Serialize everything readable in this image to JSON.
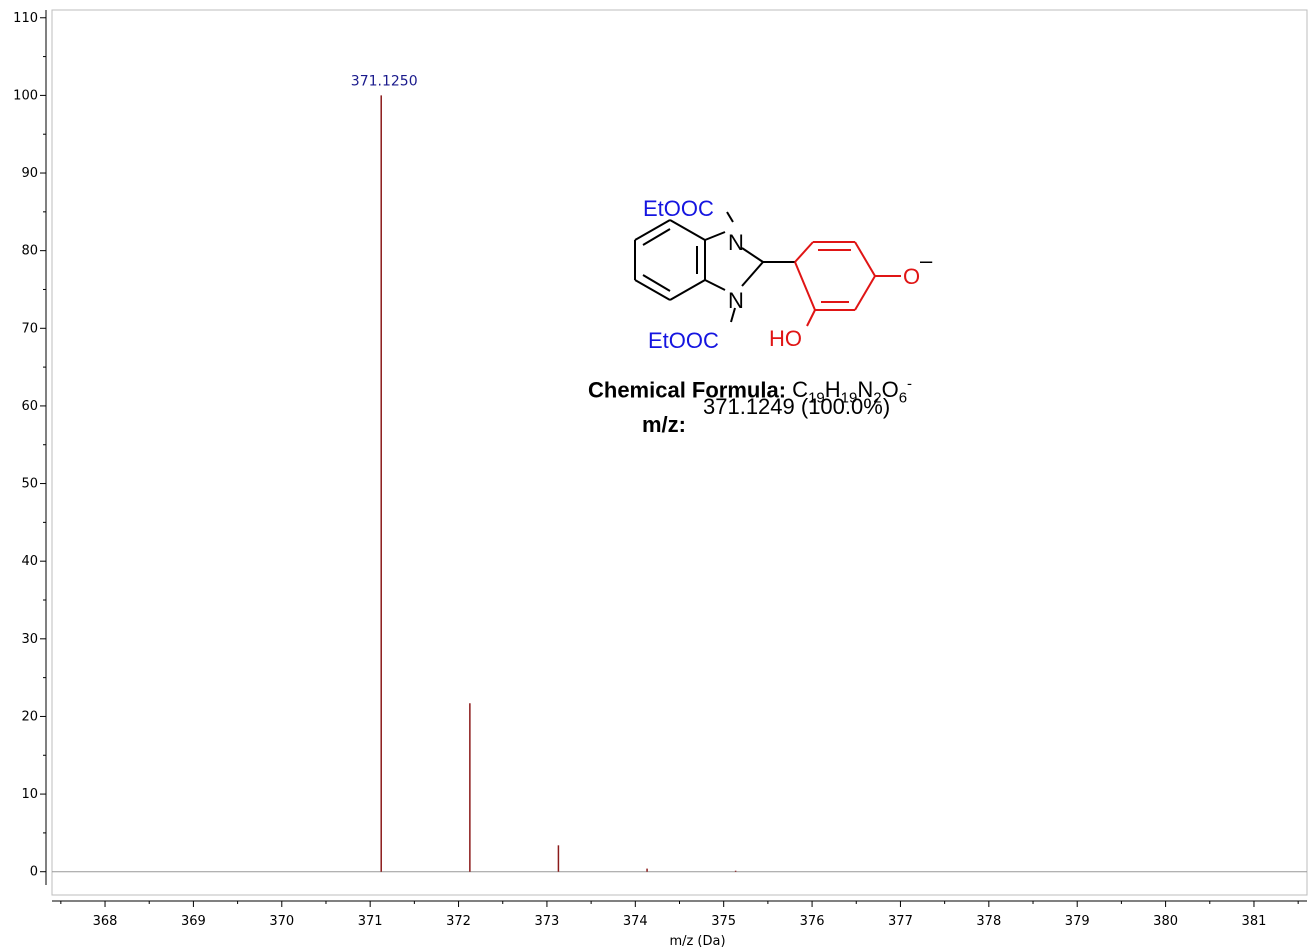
{
  "chart_data": {
    "type": "bar",
    "xlabel": "m/z (Da)",
    "ylabel": "",
    "xlim": [
      367.4,
      381.6
    ],
    "ylim": [
      -3,
      111
    ],
    "x_ticks": [
      368,
      369,
      370,
      371,
      372,
      373,
      374,
      375,
      376,
      377,
      378,
      379,
      380,
      381
    ],
    "x_tick_labels": [
      "368",
      "369",
      "370",
      "371",
      "372",
      "373",
      "374",
      "375",
      "376",
      "377",
      "378",
      "379",
      "380",
      "381"
    ],
    "y_ticks": [
      0,
      10,
      20,
      30,
      40,
      50,
      60,
      70,
      80,
      90,
      100,
      110
    ],
    "y_tick_labels": [
      "0",
      "10",
      "20",
      "30",
      "40",
      "50",
      "60",
      "70",
      "80",
      "90",
      "100",
      "110"
    ],
    "peaks": [
      {
        "mz": 371.125,
        "intensity": 100,
        "label": "371.1250"
      },
      {
        "mz": 372.128,
        "intensity": 21.7,
        "label": ""
      },
      {
        "mz": 373.13,
        "intensity": 3.4,
        "label": ""
      },
      {
        "mz": 374.133,
        "intensity": 0.4,
        "label": ""
      },
      {
        "mz": 375.135,
        "intensity": 0.05,
        "label": ""
      }
    ],
    "bar_color": "#8b1a1a",
    "peak_label_color": "#1a1a8c",
    "grid": false
  },
  "structure": {
    "labels": {
      "ester_top": "EtOOC",
      "ester_bottom": "EtOOC",
      "n_top": "N",
      "n_bottom": "N",
      "hydroxyl": "HO",
      "oxide": "O",
      "charge": "–"
    },
    "colors": {
      "ester": "#1515e0",
      "phenol": "#e01515",
      "core": "#000000"
    }
  },
  "formula": {
    "chem_label": "Chemical Formula:",
    "chem_value": "C19H19N2O6-",
    "mz_label": "m/z:",
    "mz_value": "371.1249 (100.0%)"
  }
}
